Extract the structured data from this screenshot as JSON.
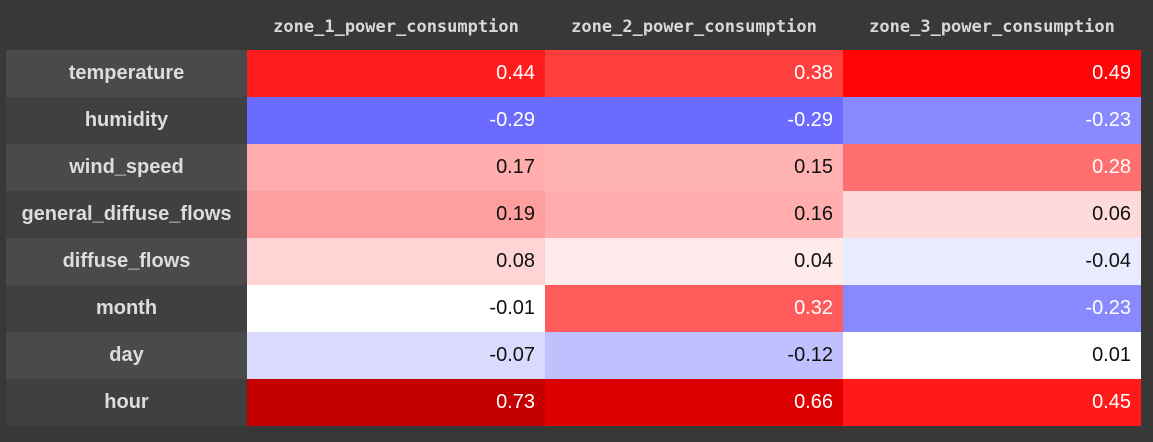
{
  "columns": [
    "zone_1_power_consumption",
    "zone_2_power_consumption",
    "zone_3_power_consumption"
  ],
  "rows": [
    {
      "label": "temperature",
      "values": [
        "0.44",
        "0.38",
        "0.49"
      ],
      "colors": [
        "#ff1c1c",
        "#ff3e3e",
        "#ff0505"
      ],
      "text_colors": [
        "#ffffff",
        "#ffffff",
        "#ffffff"
      ]
    },
    {
      "label": "humidity",
      "values": [
        "-0.29",
        "-0.29",
        "-0.23"
      ],
      "colors": [
        "#6b6bff",
        "#6b6bff",
        "#8989ff"
      ],
      "text_colors": [
        "#ffffff",
        "#ffffff",
        "#ffffff"
      ]
    },
    {
      "label": "wind_speed",
      "values": [
        "0.17",
        "0.15",
        "0.28"
      ],
      "colors": [
        "#ffadad",
        "#ffb2b2",
        "#ff6f6f"
      ],
      "text_colors": [
        "#111111",
        "#111111",
        "#ffffff"
      ]
    },
    {
      "label": "general_diffuse_flows",
      "values": [
        "0.19",
        "0.16",
        "0.06"
      ],
      "colors": [
        "#ff9e9e",
        "#ffadad",
        "#ffdada"
      ],
      "text_colors": [
        "#111111",
        "#111111",
        "#111111"
      ]
    },
    {
      "label": "diffuse_flows",
      "values": [
        "0.08",
        "0.04",
        "-0.04"
      ],
      "colors": [
        "#ffd4d4",
        "#ffebeb",
        "#ebebff"
      ],
      "text_colors": [
        "#111111",
        "#111111",
        "#111111"
      ]
    },
    {
      "label": "month",
      "values": [
        "-0.01",
        "0.32",
        "-0.23"
      ],
      "colors": [
        "#ffffff",
        "#ff5b5b",
        "#8989ff"
      ],
      "text_colors": [
        "#111111",
        "#ffffff",
        "#ffffff"
      ]
    },
    {
      "label": "day",
      "values": [
        "-0.07",
        "-0.12",
        "0.01"
      ],
      "colors": [
        "#dadaff",
        "#c0c0ff",
        "#ffffff"
      ],
      "text_colors": [
        "#111111",
        "#111111",
        "#111111"
      ]
    },
    {
      "label": "hour",
      "values": [
        "0.73",
        "0.66",
        "0.45"
      ],
      "colors": [
        "#c40000",
        "#dc0000",
        "#ff1919"
      ],
      "text_colors": [
        "#ffffff",
        "#ffffff",
        "#ffffff"
      ]
    }
  ]
}
